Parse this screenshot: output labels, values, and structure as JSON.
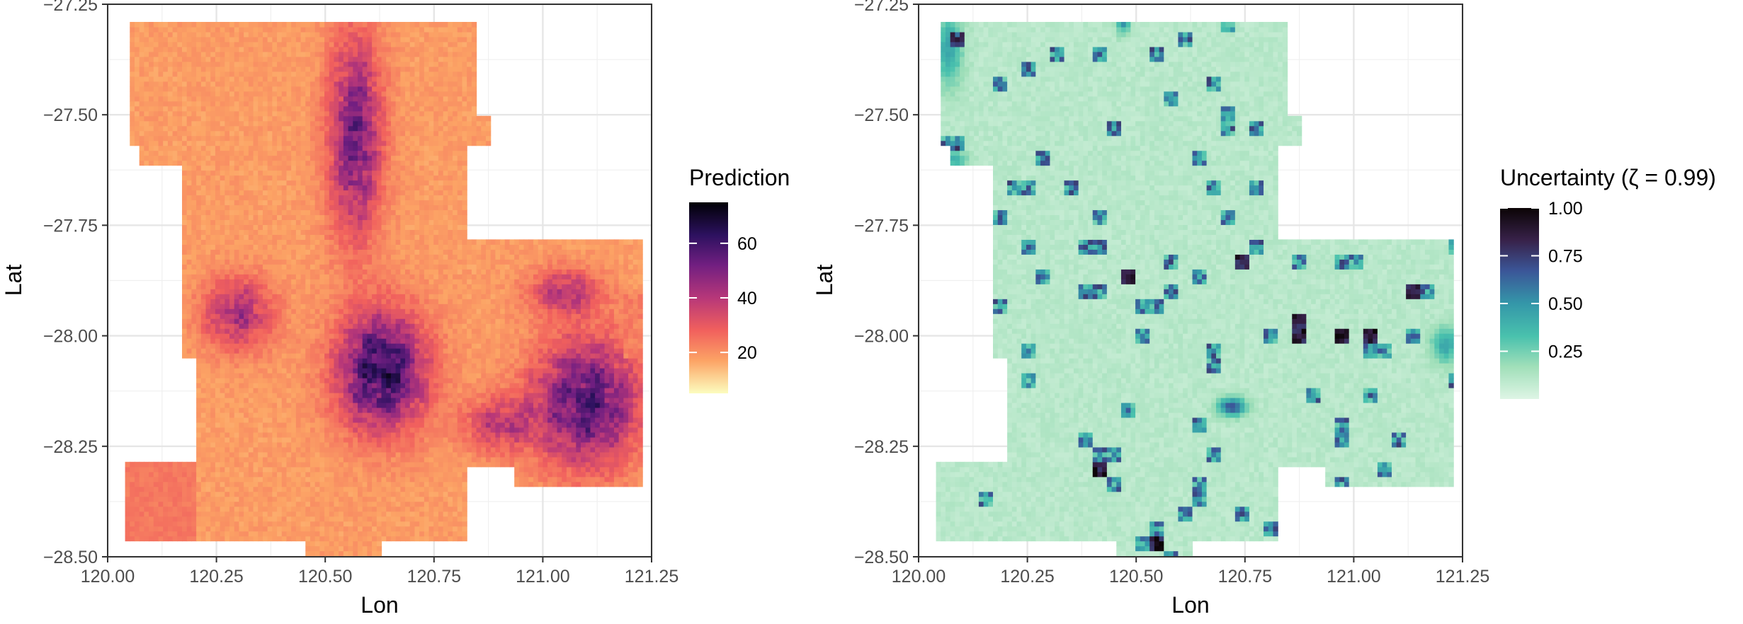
{
  "chart_data": [
    {
      "type": "heatmap",
      "xlabel": "Lon",
      "ylabel": "Lat",
      "xlim": [
        120.0,
        121.25
      ],
      "ylim": [
        -28.5,
        -27.25
      ],
      "x_ticks": [
        120.0,
        120.25,
        120.5,
        120.75,
        121.0,
        121.25
      ],
      "x_tick_labels": [
        "120.00",
        "120.25",
        "120.50",
        "120.75",
        "121.00",
        "121.25"
      ],
      "y_ticks": [
        -27.25,
        -27.5,
        -27.75,
        -28.0,
        -28.25,
        -28.5
      ],
      "y_tick_labels": [
        "−27.25",
        "−27.50",
        "−27.75",
        "−28.00",
        "−28.25",
        "−28.50"
      ],
      "grid": true,
      "colormap": "magma (reversed)",
      "colors": [
        "#fcfdbf",
        "#fca465",
        "#f1605d",
        "#b73779",
        "#721f81",
        "#2c115f",
        "#000004"
      ],
      "legend": {
        "title": "Prediction",
        "position": "right",
        "range": [
          5,
          75
        ],
        "breaks": [
          20,
          40,
          60
        ],
        "labels": [
          "20",
          "40",
          "60"
        ]
      }
    },
    {
      "type": "heatmap",
      "xlabel": "Lon",
      "ylabel": "Lat",
      "xlim": [
        120.0,
        121.25
      ],
      "ylim": [
        -28.5,
        -27.25
      ],
      "x_ticks": [
        120.0,
        120.25,
        120.5,
        120.75,
        121.0,
        121.25
      ],
      "x_tick_labels": [
        "120.00",
        "120.25",
        "120.50",
        "120.75",
        "121.00",
        "121.25"
      ],
      "y_ticks": [
        -27.25,
        -27.5,
        -27.75,
        -28.0,
        -28.25,
        -28.5
      ],
      "y_tick_labels": [
        "−27.25",
        "−27.50",
        "−27.75",
        "−28.00",
        "−28.25",
        "−28.50"
      ],
      "grid": true,
      "colormap": "mako (reversed)",
      "colors": [
        "#def5e5",
        "#a0dfb9",
        "#49c1ad",
        "#3497a9",
        "#3b5698",
        "#38224a",
        "#0b0405"
      ],
      "legend": {
        "title": "Uncertainty (ζ = 0.99)",
        "position": "right",
        "range": [
          0,
          1
        ],
        "breaks": [
          0.25,
          0.5,
          0.75,
          1.0
        ],
        "labels": [
          "0.25",
          "0.50",
          "0.75",
          "1.00"
        ]
      }
    }
  ]
}
